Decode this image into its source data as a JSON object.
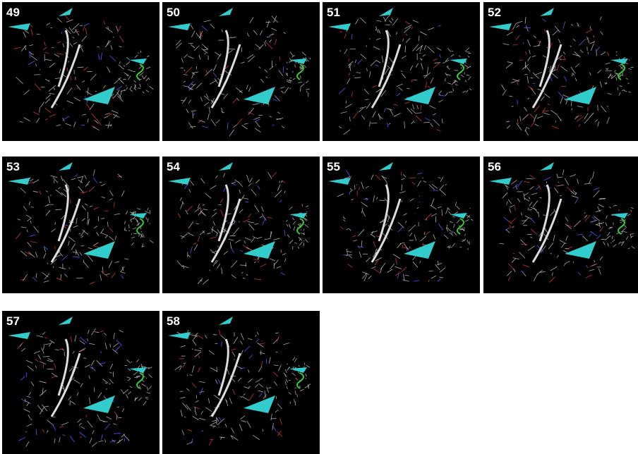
{
  "panels": [
    {
      "label": "49"
    },
    {
      "label": "50"
    },
    {
      "label": "51"
    },
    {
      "label": "52"
    },
    {
      "label": "53"
    },
    {
      "label": "54"
    },
    {
      "label": "55"
    },
    {
      "label": "56"
    },
    {
      "label": "57"
    },
    {
      "label": "58"
    }
  ]
}
